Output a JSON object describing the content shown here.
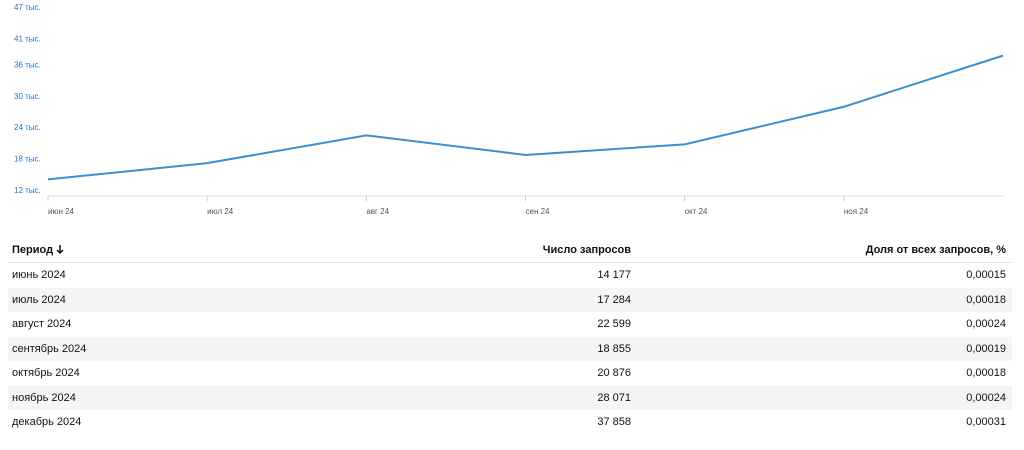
{
  "chart_data": {
    "type": "line",
    "categories": [
      "июн 24",
      "июл 24",
      "авг 24",
      "сен 24",
      "окт 24",
      "ноя 24",
      null
    ],
    "series": [
      {
        "color": "#3a8fd0",
        "values": [
          14177,
          17284,
          22599,
          18855,
          20876,
          28071,
          37858
        ]
      }
    ],
    "ylim": [
      11000,
      48500
    ],
    "yticks": [
      {
        "value": 12000,
        "label": "12 тыс."
      },
      {
        "value": 18000,
        "label": "18 тыс."
      },
      {
        "value": 24000,
        "label": "24 тыс."
      },
      {
        "value": 30000,
        "label": "30 тыс."
      },
      {
        "value": 36000,
        "label": "36 тыс."
      },
      {
        "value": 41000,
        "label": "41 тыс."
      },
      {
        "value": 47000,
        "label": "47 тыс."
      }
    ]
  },
  "table": {
    "columns": [
      "Период",
      "Число запросов",
      "Доля от всех запросов, %"
    ],
    "rows": [
      [
        "июнь 2024",
        "14 177",
        "0,00015"
      ],
      [
        "июль 2024",
        "17 284",
        "0,00018"
      ],
      [
        "август 2024",
        "22 599",
        "0,00024"
      ],
      [
        "сентябрь 2024",
        "18 855",
        "0,00019"
      ],
      [
        "октябрь 2024",
        "20 876",
        "0,00018"
      ],
      [
        "ноябрь 2024",
        "28 071",
        "0,00024"
      ],
      [
        "декабрь 2024",
        "37 858",
        "0,00031"
      ]
    ]
  }
}
